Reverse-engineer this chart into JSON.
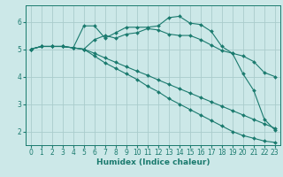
{
  "bg_color": "#cce8e8",
  "grid_color": "#aacccc",
  "line_color": "#1a7a6e",
  "xlabel": "Humidex (Indice chaleur)",
  "xlabel_fontsize": 6.5,
  "tick_fontsize": 5.5,
  "xlim": [
    -0.5,
    23.5
  ],
  "ylim": [
    1.5,
    6.6
  ],
  "yticks": [
    2,
    3,
    4,
    5,
    6
  ],
  "xticks": [
    0,
    1,
    2,
    3,
    4,
    5,
    6,
    7,
    8,
    9,
    10,
    11,
    12,
    13,
    14,
    15,
    16,
    17,
    18,
    19,
    20,
    21,
    22,
    23
  ],
  "line1_x": [
    0,
    1,
    2,
    3,
    4,
    5,
    6,
    7,
    8,
    9,
    10,
    11,
    12,
    13,
    14,
    15,
    16,
    17,
    18,
    19,
    20,
    21,
    22,
    23
  ],
  "line1_y": [
    5.0,
    5.1,
    5.1,
    5.1,
    5.05,
    5.0,
    5.35,
    5.5,
    5.4,
    5.55,
    5.6,
    5.75,
    5.7,
    5.55,
    5.5,
    5.5,
    5.35,
    5.15,
    4.95,
    4.85,
    4.75,
    4.55,
    4.15,
    4.0
  ],
  "line2_x": [
    0,
    1,
    2,
    3,
    4,
    5,
    6,
    7,
    8,
    9,
    10,
    11,
    12,
    13,
    14,
    15,
    16,
    17,
    18,
    19,
    20,
    21,
    22,
    23
  ],
  "line2_y": [
    5.0,
    5.1,
    5.1,
    5.1,
    5.05,
    5.85,
    5.85,
    5.4,
    5.6,
    5.8,
    5.8,
    5.8,
    5.85,
    6.15,
    6.2,
    5.95,
    5.9,
    5.65,
    5.1,
    4.85,
    4.1,
    3.5,
    2.45,
    2.05
  ],
  "line3_x": [
    0,
    1,
    2,
    3,
    4,
    5,
    6,
    7,
    8,
    9,
    10,
    11,
    12,
    13,
    14,
    15,
    16,
    17,
    18,
    19,
    20,
    21,
    22,
    23
  ],
  "line3_y": [
    5.0,
    5.1,
    5.1,
    5.1,
    5.05,
    5.0,
    4.75,
    4.5,
    4.3,
    4.1,
    3.9,
    3.65,
    3.45,
    3.2,
    3.0,
    2.8,
    2.6,
    2.4,
    2.2,
    2.0,
    1.85,
    1.75,
    1.65,
    1.6
  ],
  "line4_x": [
    0,
    1,
    2,
    3,
    4,
    5,
    6,
    7,
    8,
    9,
    10,
    11,
    12,
    13,
    14,
    15,
    16,
    17,
    18,
    19,
    20,
    21,
    22,
    23
  ],
  "line4_y": [
    5.0,
    5.1,
    5.1,
    5.1,
    5.05,
    5.0,
    4.85,
    4.68,
    4.52,
    4.36,
    4.2,
    4.05,
    3.88,
    3.72,
    3.56,
    3.4,
    3.24,
    3.08,
    2.92,
    2.76,
    2.6,
    2.44,
    2.28,
    2.12
  ]
}
